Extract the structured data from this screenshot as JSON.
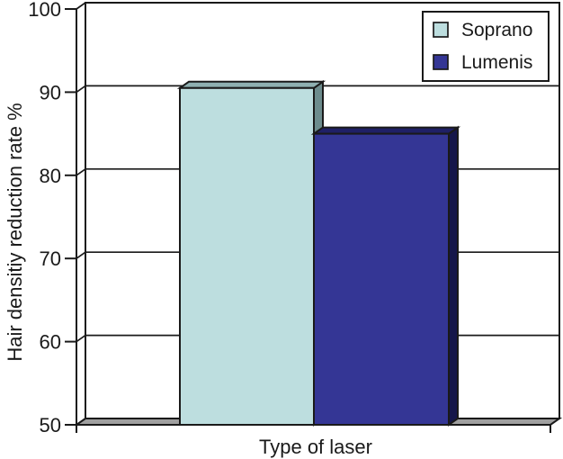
{
  "chart_data": {
    "type": "bar",
    "style": "3d-column",
    "title": "",
    "xlabel": "Type of laser",
    "ylabel": "Hair densitiy reduction rate %",
    "categories": [
      "Type of laser"
    ],
    "series": [
      {
        "name": "Soprano",
        "values": [
          90.5
        ],
        "color": "#BDDEDF",
        "top_color": "#8FB0B1",
        "side_color": "#6D8C8D"
      },
      {
        "name": "Lumenis",
        "values": [
          85
        ],
        "color": "#343695",
        "top_color": "#1F2066",
        "side_color": "#15164A"
      }
    ],
    "ylim": [
      50,
      100
    ],
    "yticks": [
      50,
      60,
      70,
      80,
      90,
      100
    ],
    "grid": true,
    "legend_position": "top-right",
    "wall_color": "#FFFFFF",
    "floor_color": "#A0A0A0",
    "line_color": "#1a1a1a"
  }
}
